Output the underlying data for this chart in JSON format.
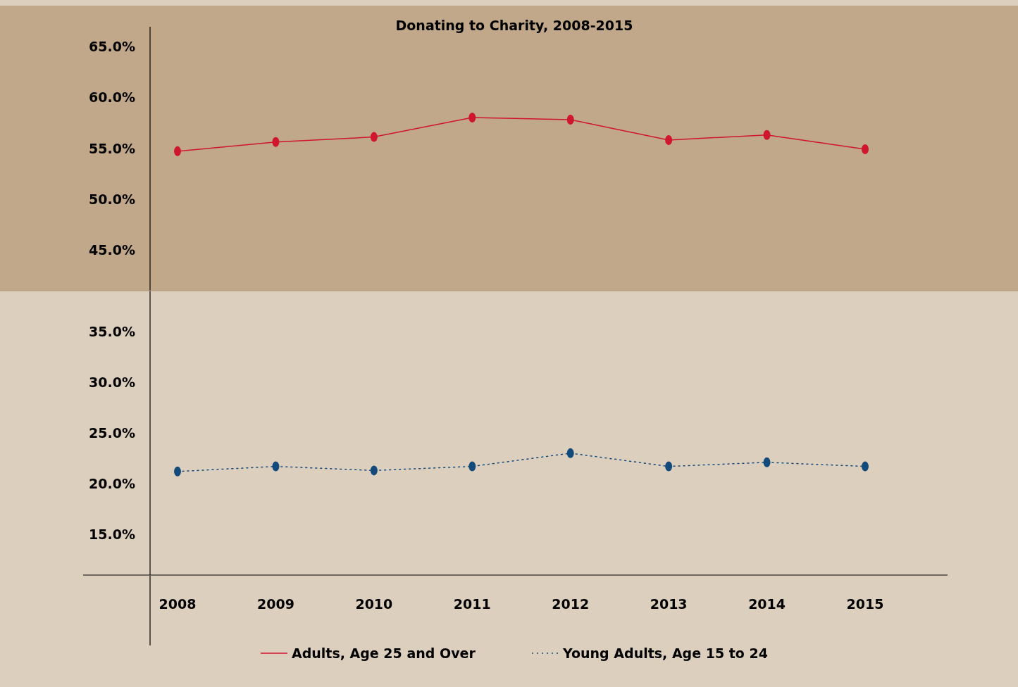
{
  "chart_data": [
    {
      "type": "line",
      "title": "Donating to Charity, 2008-2015",
      "categories": [
        "2008",
        "2009",
        "2010",
        "2011",
        "2012",
        "2013",
        "2014",
        "2015"
      ],
      "series": [
        {
          "name": "Adults, Age 25 and Over",
          "color": "#d0152f",
          "values": [
            54.7,
            55.6,
            56.1,
            58.0,
            57.8,
            55.8,
            56.3,
            54.9
          ]
        }
      ],
      "ylim": [
        41,
        69
      ],
      "yticks": [
        {
          "value": 45,
          "label": "45.0%"
        },
        {
          "value": 50,
          "label": "50.0%"
        },
        {
          "value": 55,
          "label": "55.0%"
        },
        {
          "value": 60,
          "label": "60.0%"
        },
        {
          "value": 65,
          "label": "65.0%"
        }
      ],
      "tick_labels": "y",
      "marker": "circle",
      "line_style": "solid",
      "legend": "bottom"
    },
    {
      "type": "line",
      "categories": [
        "2008",
        "2009",
        "2010",
        "2011",
        "2012",
        "2013",
        "2014",
        "2015"
      ],
      "series": [
        {
          "name": "Young Adults, Age 15 to 24",
          "color": "#134a7c",
          "values": [
            21.2,
            21.7,
            21.3,
            21.7,
            23.0,
            21.7,
            22.1,
            21.7
          ]
        }
      ],
      "ylim": [
        11,
        39
      ],
      "yticks": [
        {
          "value": 15,
          "label": "15.0%"
        },
        {
          "value": 20,
          "label": "20.0%"
        },
        {
          "value": 25,
          "label": "25.0%"
        },
        {
          "value": 30,
          "label": "30.0%"
        },
        {
          "value": 35,
          "label": "35.0%"
        }
      ],
      "marker": "circle",
      "line_style": "dotted",
      "legend": "bottom"
    }
  ]
}
